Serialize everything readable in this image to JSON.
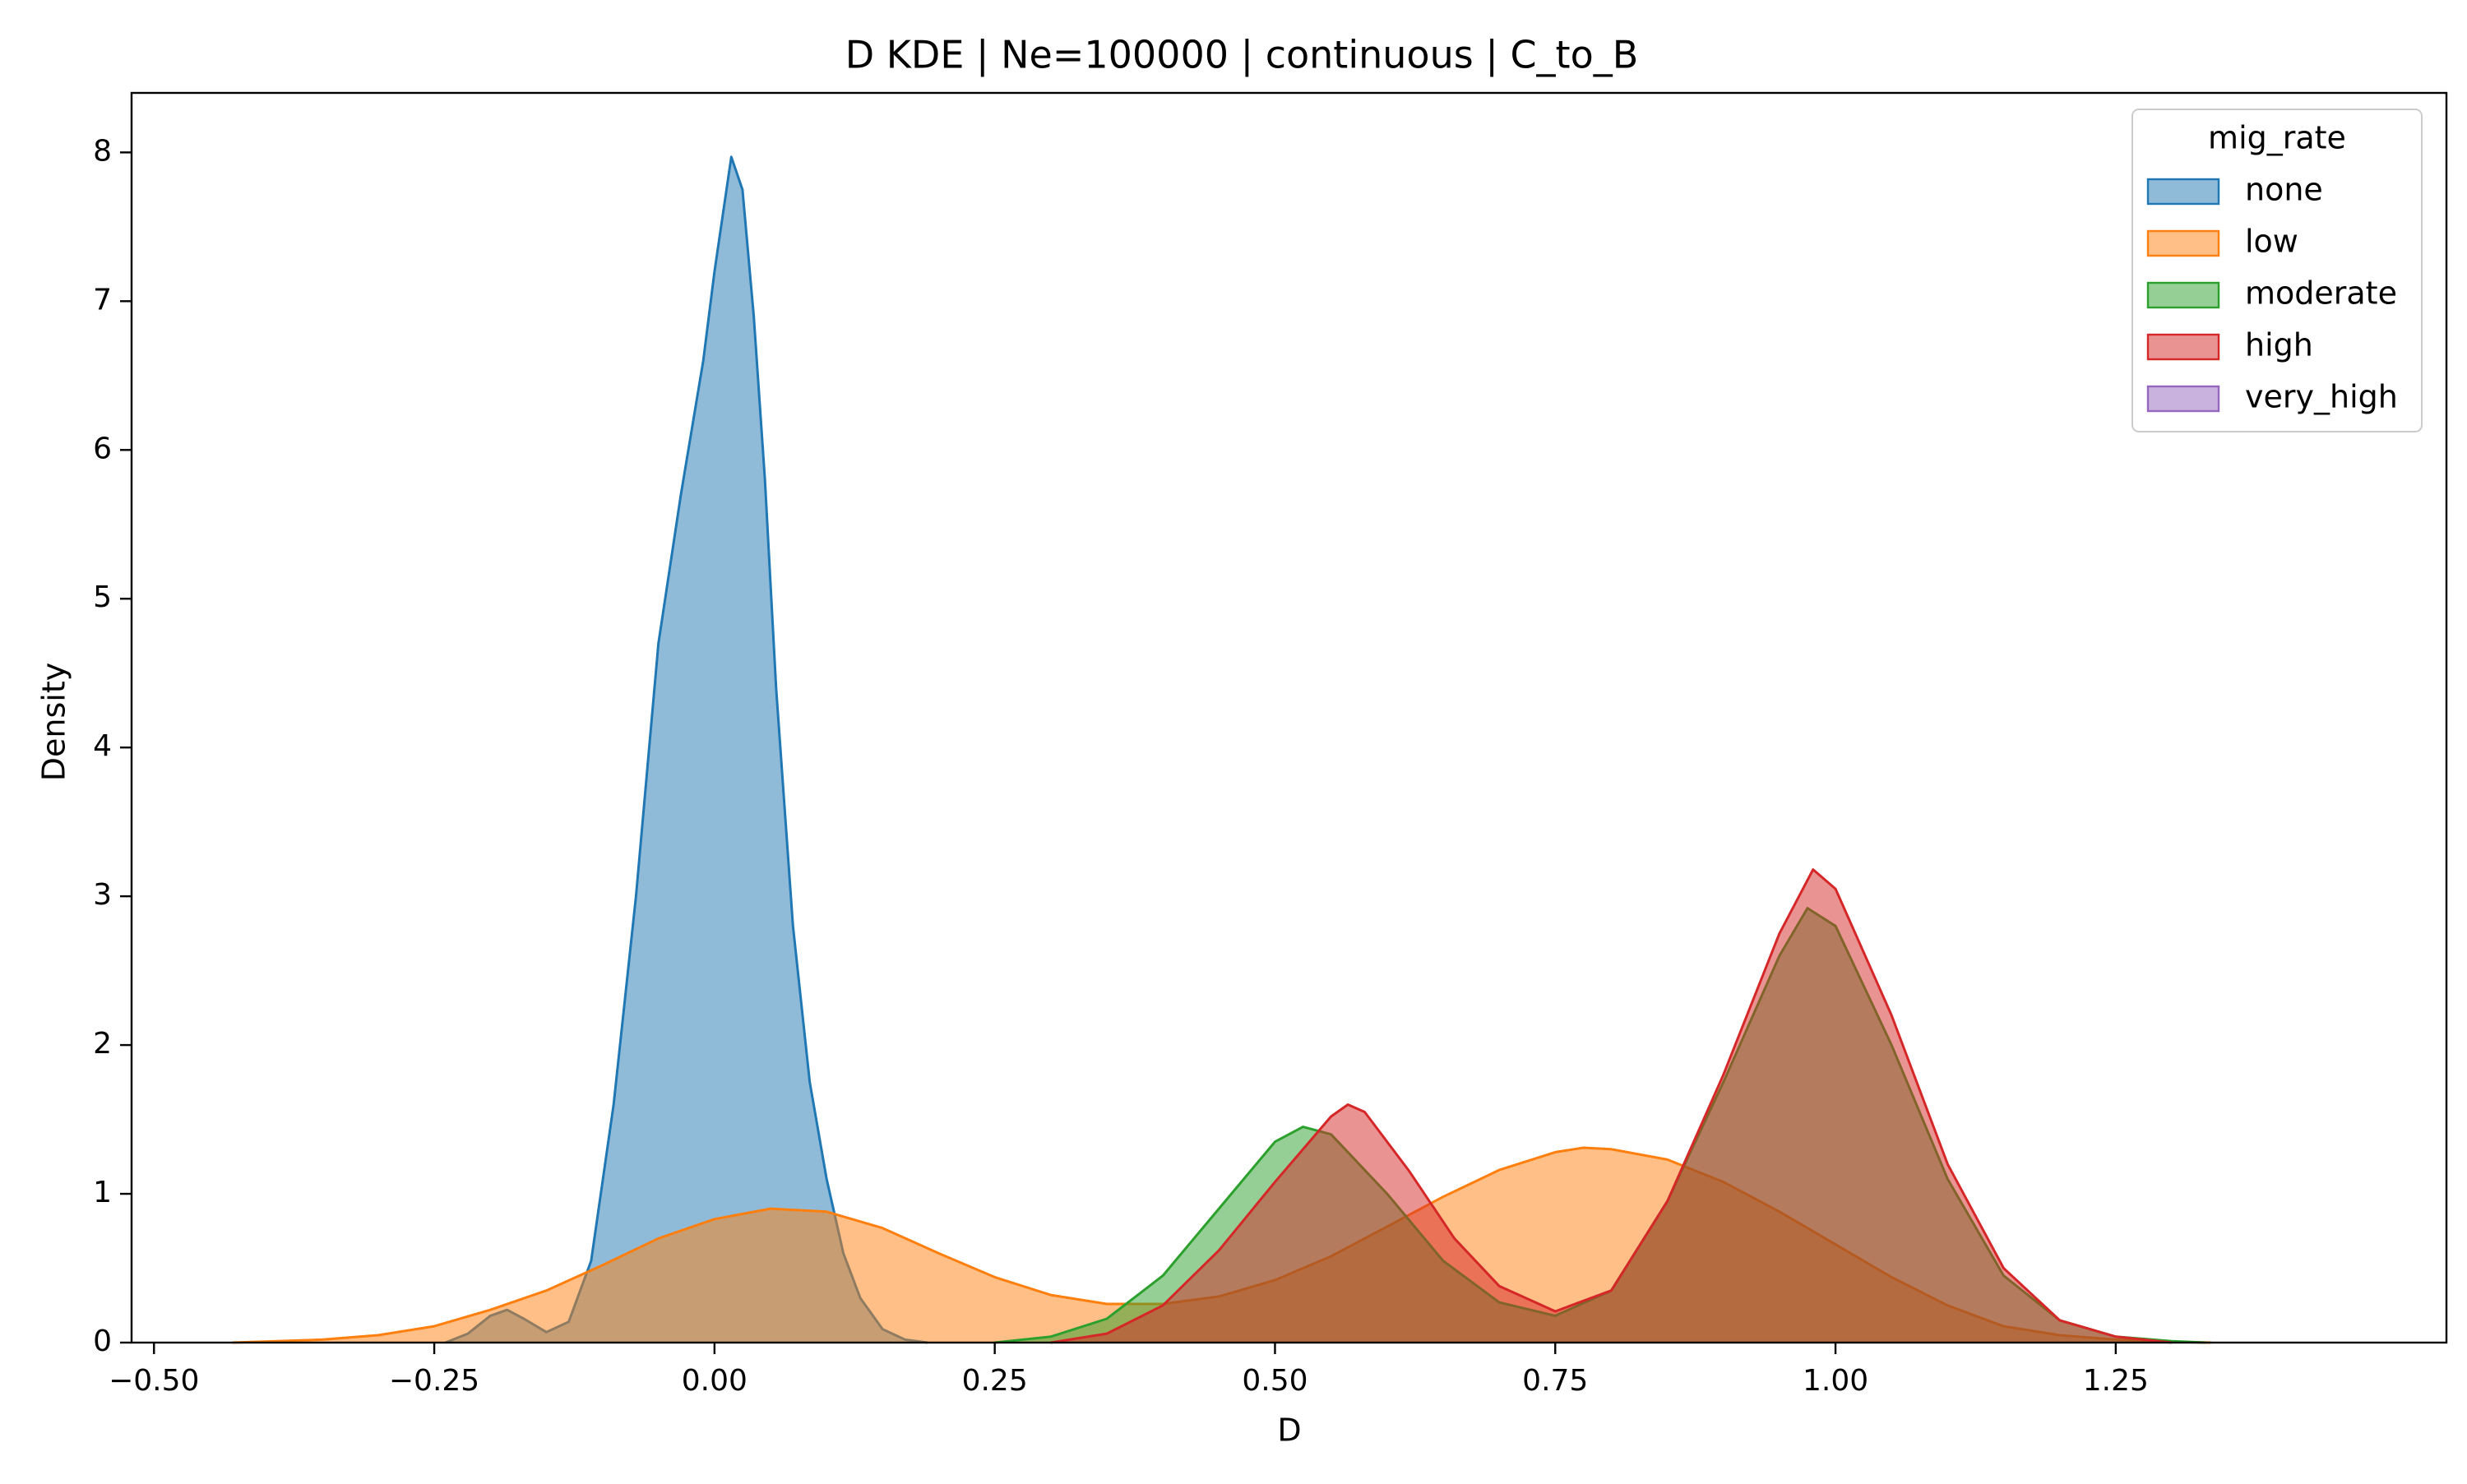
{
  "chart_data": {
    "type": "area",
    "title": "D KDE | Ne=100000 | continuous | C_to_B",
    "xlabel": "D",
    "ylabel": "Density",
    "xlim": [
      -0.52,
      1.545
    ],
    "ylim": [
      0,
      8.4
    ],
    "x_ticks": [
      -0.5,
      -0.25,
      0.0,
      0.25,
      0.5,
      0.75,
      1.0,
      1.25
    ],
    "x_tick_labels": [
      "−0.50",
      "−0.25",
      "0.00",
      "0.25",
      "0.50",
      "0.75",
      "1.00",
      "1.25"
    ],
    "y_ticks": [
      0,
      1,
      2,
      3,
      4,
      5,
      6,
      7,
      8
    ],
    "y_tick_labels": [
      "0",
      "1",
      "2",
      "3",
      "4",
      "5",
      "6",
      "7",
      "8"
    ],
    "grid": false,
    "legend": {
      "title": "mig_rate",
      "placement": "top-right"
    },
    "series": [
      {
        "name": "none",
        "color": "#1f77b4",
        "points": [
          [
            -0.24,
            0.0
          ],
          [
            -0.22,
            0.06
          ],
          [
            -0.2,
            0.18
          ],
          [
            -0.185,
            0.22
          ],
          [
            -0.17,
            0.16
          ],
          [
            -0.15,
            0.07
          ],
          [
            -0.13,
            0.14
          ],
          [
            -0.11,
            0.55
          ],
          [
            -0.09,
            1.6
          ],
          [
            -0.07,
            3.0
          ],
          [
            -0.05,
            4.7
          ],
          [
            -0.03,
            5.7
          ],
          [
            -0.01,
            6.6
          ],
          [
            0.0,
            7.2
          ],
          [
            0.015,
            7.97
          ],
          [
            0.025,
            7.75
          ],
          [
            0.035,
            6.9
          ],
          [
            0.045,
            5.8
          ],
          [
            0.055,
            4.4
          ],
          [
            0.07,
            2.8
          ],
          [
            0.085,
            1.75
          ],
          [
            0.1,
            1.1
          ],
          [
            0.115,
            0.6
          ],
          [
            0.13,
            0.3
          ],
          [
            0.15,
            0.09
          ],
          [
            0.17,
            0.02
          ],
          [
            0.19,
            0.0
          ]
        ]
      },
      {
        "name": "low",
        "color": "#ff7f0e",
        "points": [
          [
            -0.43,
            0.0
          ],
          [
            -0.35,
            0.02
          ],
          [
            -0.3,
            0.05
          ],
          [
            -0.25,
            0.11
          ],
          [
            -0.2,
            0.22
          ],
          [
            -0.15,
            0.35
          ],
          [
            -0.1,
            0.52
          ],
          [
            -0.05,
            0.7
          ],
          [
            0.0,
            0.83
          ],
          [
            0.05,
            0.9
          ],
          [
            0.1,
            0.88
          ],
          [
            0.15,
            0.77
          ],
          [
            0.2,
            0.6
          ],
          [
            0.25,
            0.44
          ],
          [
            0.3,
            0.32
          ],
          [
            0.35,
            0.26
          ],
          [
            0.4,
            0.26
          ],
          [
            0.45,
            0.31
          ],
          [
            0.5,
            0.42
          ],
          [
            0.55,
            0.58
          ],
          [
            0.6,
            0.78
          ],
          [
            0.65,
            0.98
          ],
          [
            0.7,
            1.16
          ],
          [
            0.75,
            1.28
          ],
          [
            0.775,
            1.31
          ],
          [
            0.8,
            1.3
          ],
          [
            0.85,
            1.23
          ],
          [
            0.9,
            1.08
          ],
          [
            0.95,
            0.88
          ],
          [
            1.0,
            0.66
          ],
          [
            1.05,
            0.44
          ],
          [
            1.1,
            0.25
          ],
          [
            1.15,
            0.11
          ],
          [
            1.2,
            0.05
          ],
          [
            1.25,
            0.02
          ],
          [
            1.3,
            0.005
          ],
          [
            1.335,
            0.0
          ]
        ]
      },
      {
        "name": "moderate",
        "color": "#2ca02c",
        "points": [
          [
            0.25,
            0.0
          ],
          [
            0.3,
            0.04
          ],
          [
            0.35,
            0.16
          ],
          [
            0.4,
            0.45
          ],
          [
            0.45,
            0.9
          ],
          [
            0.5,
            1.35
          ],
          [
            0.525,
            1.45
          ],
          [
            0.55,
            1.4
          ],
          [
            0.6,
            1.0
          ],
          [
            0.65,
            0.55
          ],
          [
            0.7,
            0.27
          ],
          [
            0.75,
            0.18
          ],
          [
            0.8,
            0.35
          ],
          [
            0.85,
            0.95
          ],
          [
            0.9,
            1.75
          ],
          [
            0.95,
            2.6
          ],
          [
            0.975,
            2.92
          ],
          [
            1.0,
            2.8
          ],
          [
            1.05,
            2.0
          ],
          [
            1.1,
            1.1
          ],
          [
            1.15,
            0.45
          ],
          [
            1.2,
            0.15
          ],
          [
            1.25,
            0.04
          ],
          [
            1.3,
            0.01
          ],
          [
            1.33,
            0.0
          ]
        ]
      },
      {
        "name": "high",
        "color": "#d62728",
        "points": [
          [
            0.3,
            0.0
          ],
          [
            0.35,
            0.06
          ],
          [
            0.4,
            0.25
          ],
          [
            0.45,
            0.62
          ],
          [
            0.5,
            1.08
          ],
          [
            0.55,
            1.52
          ],
          [
            0.565,
            1.6
          ],
          [
            0.58,
            1.55
          ],
          [
            0.62,
            1.15
          ],
          [
            0.66,
            0.7
          ],
          [
            0.7,
            0.38
          ],
          [
            0.75,
            0.21
          ],
          [
            0.8,
            0.35
          ],
          [
            0.85,
            0.95
          ],
          [
            0.9,
            1.8
          ],
          [
            0.95,
            2.75
          ],
          [
            0.98,
            3.18
          ],
          [
            1.0,
            3.05
          ],
          [
            1.05,
            2.2
          ],
          [
            1.1,
            1.2
          ],
          [
            1.15,
            0.5
          ],
          [
            1.2,
            0.15
          ],
          [
            1.25,
            0.04
          ],
          [
            1.3,
            0.0
          ]
        ]
      },
      {
        "name": "very_high",
        "color": "#9467bd",
        "points": []
      }
    ]
  }
}
